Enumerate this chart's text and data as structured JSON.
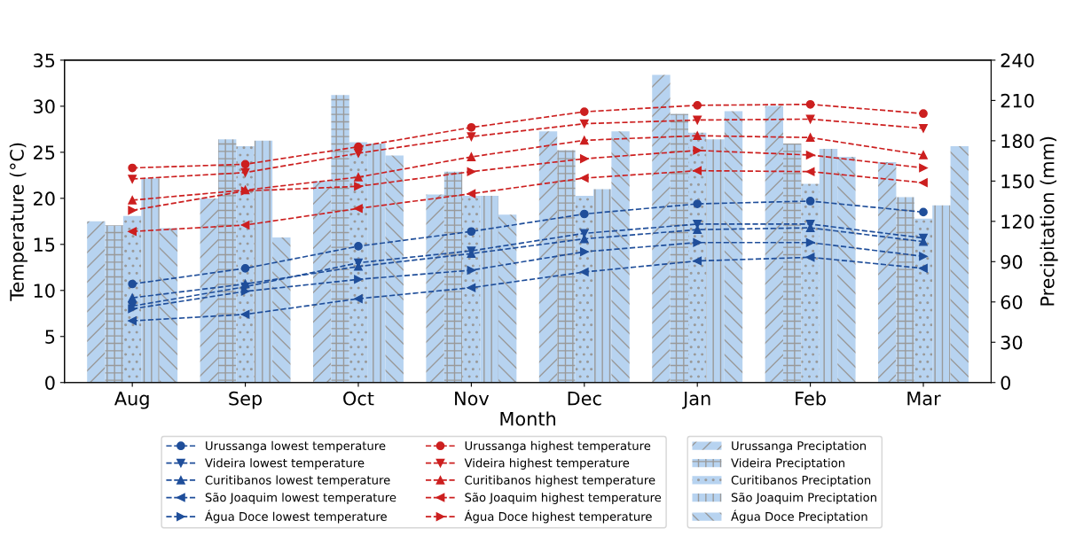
{
  "chart_data": {
    "type": "bar",
    "xlabel": "Month",
    "ylabel": "Temperature (°C)",
    "y2label": "Precipitation (mm)",
    "categories": [
      "Aug",
      "Sep",
      "Oct",
      "Nov",
      "Dec",
      "Jan",
      "Feb",
      "Mar"
    ],
    "ylim": [
      0,
      35
    ],
    "yticks": [
      0,
      5,
      10,
      15,
      20,
      25,
      30,
      35
    ],
    "y2lim": [
      0,
      240
    ],
    "y2ticks": [
      0,
      30,
      60,
      90,
      120,
      150,
      180,
      210,
      240
    ],
    "grid": false,
    "legend": "bottom",
    "line_style": "dashed",
    "series": [
      {
        "name": "Urussanga lowest temperature",
        "type": "line",
        "marker": "circle",
        "color": "#1f4e9a",
        "values": [
          10.7,
          12.4,
          14.8,
          16.4,
          18.3,
          19.4,
          19.7,
          18.5
        ]
      },
      {
        "name": "Videira lowest temperature",
        "type": "line",
        "marker": "triangle_down",
        "color": "#1f4e9a",
        "values": [
          8.3,
          10.4,
          13.0,
          14.3,
          16.2,
          17.2,
          17.2,
          15.7
        ]
      },
      {
        "name": "Curitibanos lowest temperature",
        "type": "line",
        "marker": "triangle",
        "color": "#1f4e9a",
        "values": [
          9.2,
          10.7,
          12.6,
          14.0,
          15.6,
          16.6,
          16.8,
          15.3
        ]
      },
      {
        "name": "São Joaquim lowest temperature",
        "type": "line",
        "marker": "triangle_left",
        "color": "#1f4e9a",
        "values": [
          6.7,
          7.4,
          9.1,
          10.3,
          12.0,
          13.2,
          13.6,
          12.4
        ]
      },
      {
        "name": "Água Doce lowest temperature",
        "type": "line",
        "marker": "triangle_right",
        "color": "#1f4e9a",
        "values": [
          8.0,
          9.9,
          11.2,
          12.2,
          14.2,
          15.2,
          15.2,
          13.7
        ]
      },
      {
        "name": "Urussanga highest temperature",
        "type": "line",
        "marker": "circle",
        "color": "#cc1f1f",
        "values": [
          23.3,
          23.7,
          25.6,
          27.7,
          29.4,
          30.1,
          30.2,
          29.2
        ]
      },
      {
        "name": "Videira highest temperature",
        "type": "line",
        "marker": "triangle_down",
        "color": "#cc1f1f",
        "values": [
          22.1,
          22.8,
          24.9,
          26.7,
          28.1,
          28.5,
          28.6,
          27.6
        ]
      },
      {
        "name": "Curitibanos highest temperature",
        "type": "line",
        "marker": "triangle",
        "color": "#cc1f1f",
        "values": [
          19.8,
          20.9,
          22.3,
          24.5,
          26.3,
          26.8,
          26.6,
          24.7
        ]
      },
      {
        "name": "São Joaquim highest temperature",
        "type": "line",
        "marker": "triangle_left",
        "color": "#cc1f1f",
        "values": [
          16.4,
          17.1,
          18.9,
          20.5,
          22.2,
          23.0,
          22.9,
          21.7
        ]
      },
      {
        "name": "Água Doce highest temperature",
        "type": "line",
        "marker": "triangle_right",
        "color": "#cc1f1f",
        "values": [
          18.7,
          20.8,
          21.3,
          22.9,
          24.3,
          25.2,
          24.7,
          23.3
        ]
      },
      {
        "name": "Urussanga Preciptation",
        "axis": "y2",
        "color": "#b7d3f0",
        "values": [
          120,
          137,
          150,
          140,
          187,
          229,
          206,
          164
        ]
      },
      {
        "name": "Videira Preciptation",
        "axis": "y2",
        "color": "#b7d3f0",
        "values": [
          117,
          181,
          214,
          157,
          173,
          200,
          178,
          138
        ]
      },
      {
        "name": "Curitibanos Preciptation",
        "axis": "y2",
        "color": "#b7d3f0",
        "values": [
          124,
          176,
          179,
          139,
          139,
          186,
          148,
          122
        ]
      },
      {
        "name": "São Joaquim Preciptation",
        "axis": "y2",
        "color": "#b7d3f0",
        "values": [
          152,
          180,
          178,
          139,
          144,
          181,
          174,
          132
        ]
      },
      {
        "name": "Água Doce Preciptation",
        "axis": "y2",
        "color": "#b7d3f0",
        "values": [
          115,
          108,
          169,
          125,
          187,
          202,
          168,
          176
        ]
      }
    ]
  }
}
